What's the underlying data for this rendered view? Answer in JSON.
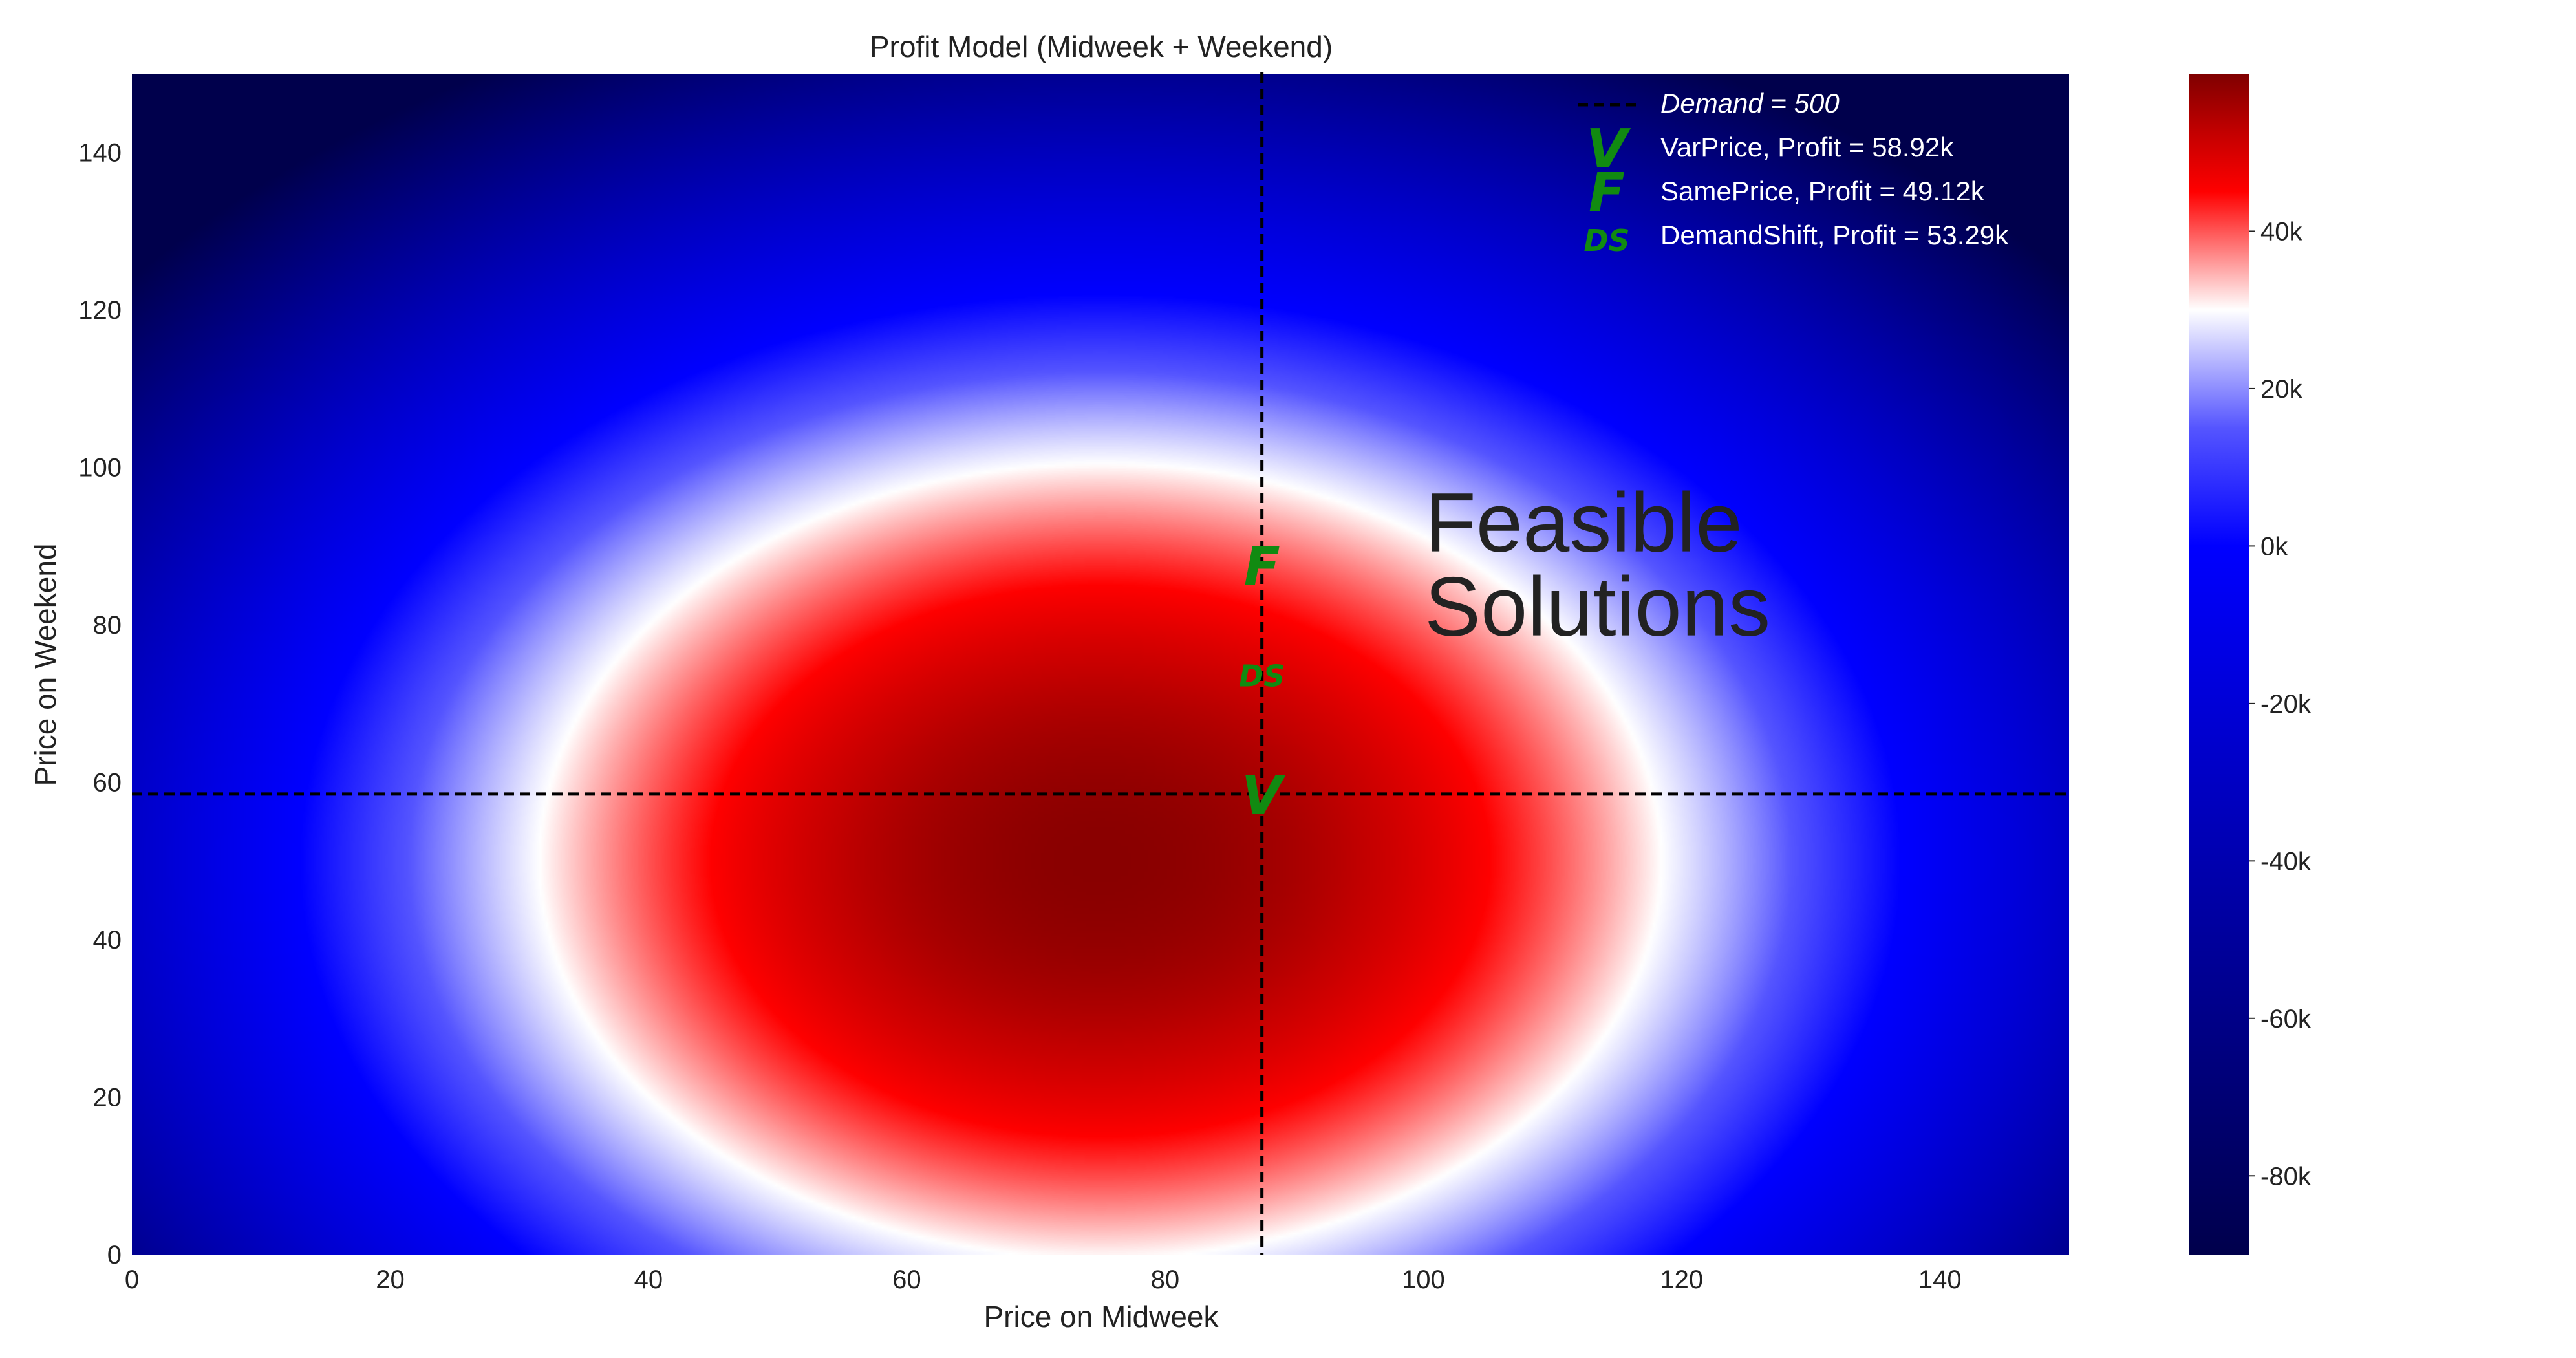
{
  "chart_data": {
    "type": "heatmap",
    "title": "Profit Model (Midweek + Weekend)",
    "xlabel": "Price on Midweek",
    "ylabel": "Price on Weekend",
    "xlim": [
      0,
      150
    ],
    "ylim": [
      0,
      150
    ],
    "x_ticks": [
      0,
      20,
      40,
      60,
      80,
      100,
      120,
      140
    ],
    "y_ticks": [
      0,
      20,
      40,
      60,
      80,
      100,
      120,
      140
    ],
    "grid": false,
    "colormap": "seismic",
    "colorbar": {
      "range": [
        -90,
        60
      ],
      "ticks": [
        40,
        20,
        0,
        -20,
        -40,
        -60,
        -80
      ],
      "tick_labels": [
        "40k",
        "20k",
        "0k",
        "-20k",
        "-40k",
        "-60k",
        "-80k"
      ]
    },
    "surface": {
      "peak_value_k": 58.92,
      "peak_x": 75,
      "peak_y": 50,
      "zero_contour_note": "profit falls to 0k near the corners and top edge"
    },
    "reference_lines": [
      {
        "orientation": "vertical",
        "x": 87.5,
        "style": "dashed",
        "color": "#000000"
      },
      {
        "orientation": "horizontal",
        "y": 58.5,
        "style": "dashed",
        "color": "#000000"
      }
    ],
    "points": [
      {
        "marker": "V",
        "series": "VarPrice",
        "x": 87.5,
        "y": 58.5
      },
      {
        "marker": "F",
        "series": "SamePrice",
        "x": 87.5,
        "y": 87.5
      },
      {
        "marker": "DS",
        "series": "DemandShift",
        "x": 87.5,
        "y": 73.5
      }
    ],
    "annotations": [
      {
        "text_lines": [
          "Feasible",
          "Solutions"
        ],
        "x": 100,
        "y": 100
      }
    ],
    "legend": {
      "position": "top-right",
      "entries": [
        {
          "kind": "dashed-line",
          "label": "Demand = 500"
        },
        {
          "kind": "marker",
          "marker": "V",
          "label": "VarPrice, Profit = 58.92k"
        },
        {
          "kind": "marker",
          "marker": "F",
          "label": "SamePrice, Profit = 49.12k"
        },
        {
          "kind": "marker",
          "marker": "DS",
          "label": "DemandShift, Profit = 53.29k"
        }
      ]
    },
    "colors": {
      "marker": "#118a11",
      "reference_line": "#000000",
      "cmap_low": "#00004c",
      "cmap_mid": "#ffffff",
      "cmap_high": "#7f0000"
    }
  }
}
